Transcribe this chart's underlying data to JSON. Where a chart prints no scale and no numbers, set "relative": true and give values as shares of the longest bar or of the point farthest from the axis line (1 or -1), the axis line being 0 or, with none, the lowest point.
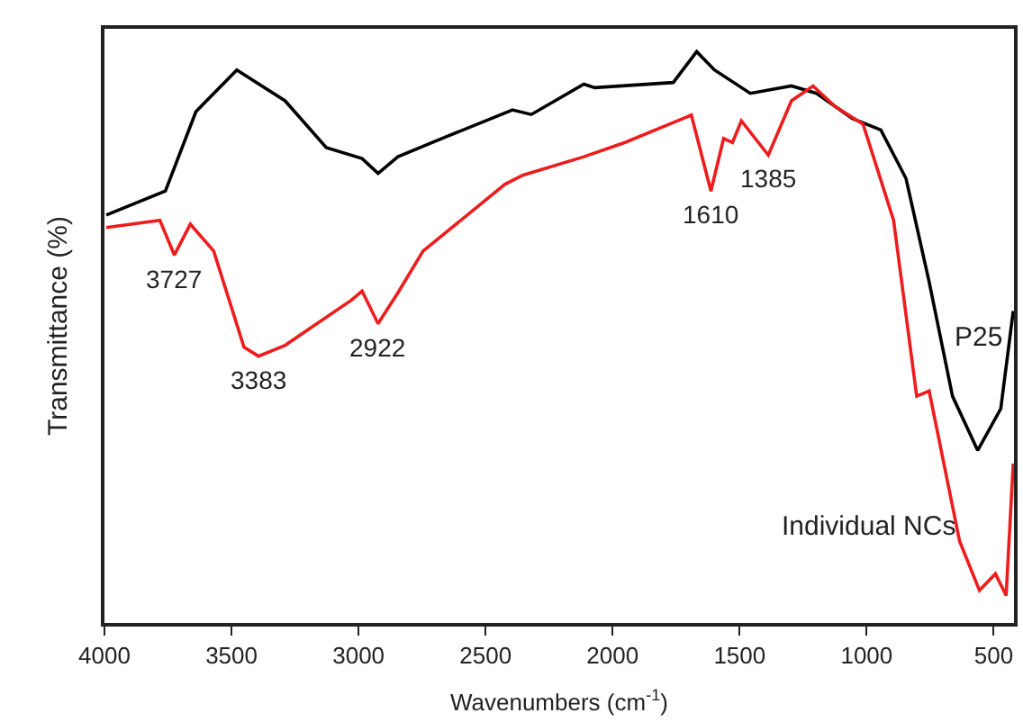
{
  "chart_data": {
    "type": "line",
    "relative": true,
    "xlabel": "Wavenumbers (cm$^{-1}$)",
    "ylabel": "Transmittance (%)",
    "xlim": [
      4000,
      420
    ],
    "xticks": [
      4000,
      3500,
      3000,
      2500,
      2000,
      1500,
      1000,
      500
    ],
    "legend": false,
    "marker": "none",
    "line_style": "solid",
    "series": [
      {
        "name": "P25",
        "color": "#000000",
        "x": [
          3993,
          3760,
          3640,
          3479,
          3289,
          3127,
          2986,
          2923,
          2845,
          2655,
          2394,
          2320,
          2113,
          2070,
          1761,
          1669,
          1599,
          1458,
          1296,
          1197,
          1056,
          944,
          845,
          754,
          662,
          563,
          472,
          423
        ],
        "values": [
          0.714,
          0.756,
          0.895,
          0.968,
          0.914,
          0.832,
          0.813,
          0.787,
          0.816,
          0.851,
          0.898,
          0.89,
          0.943,
          0.937,
          0.946,
          1.0,
          0.968,
          0.927,
          0.94,
          0.927,
          0.883,
          0.863,
          0.778,
          0.597,
          0.397,
          0.302,
          0.375,
          0.546
        ]
      },
      {
        "name": "Individual NCs",
        "color": "#ee1c1c",
        "x": [
          3993,
          3782,
          3725,
          3662,
          3570,
          3451,
          3394,
          3289,
          3028,
          2986,
          2923,
          2845,
          2746,
          2423,
          2352,
          2113,
          1951,
          1690,
          1613,
          1563,
          1528,
          1493,
          1387,
          1296,
          1211,
          1127,
          1014,
          894,
          803,
          754,
          634,
          556,
          493,
          451,
          423
        ],
        "values": [
          0.692,
          0.705,
          0.644,
          0.698,
          0.651,
          0.483,
          0.467,
          0.486,
          0.565,
          0.581,
          0.524,
          0.578,
          0.651,
          0.768,
          0.784,
          0.816,
          0.841,
          0.889,
          0.756,
          0.848,
          0.841,
          0.879,
          0.819,
          0.914,
          0.94,
          0.905,
          0.873,
          0.705,
          0.397,
          0.406,
          0.143,
          0.057,
          0.086,
          0.048,
          0.279
        ]
      }
    ],
    "annotations": [
      {
        "text": "3727",
        "x": 3725,
        "y": 0.644
      },
      {
        "text": "3383",
        "x": 3394,
        "y": 0.467
      },
      {
        "text": "2922",
        "x": 2923,
        "y": 0.524
      },
      {
        "text": "1610",
        "x": 1613,
        "y": 0.756
      },
      {
        "text": "1385",
        "x": 1387,
        "y": 0.819
      }
    ]
  }
}
